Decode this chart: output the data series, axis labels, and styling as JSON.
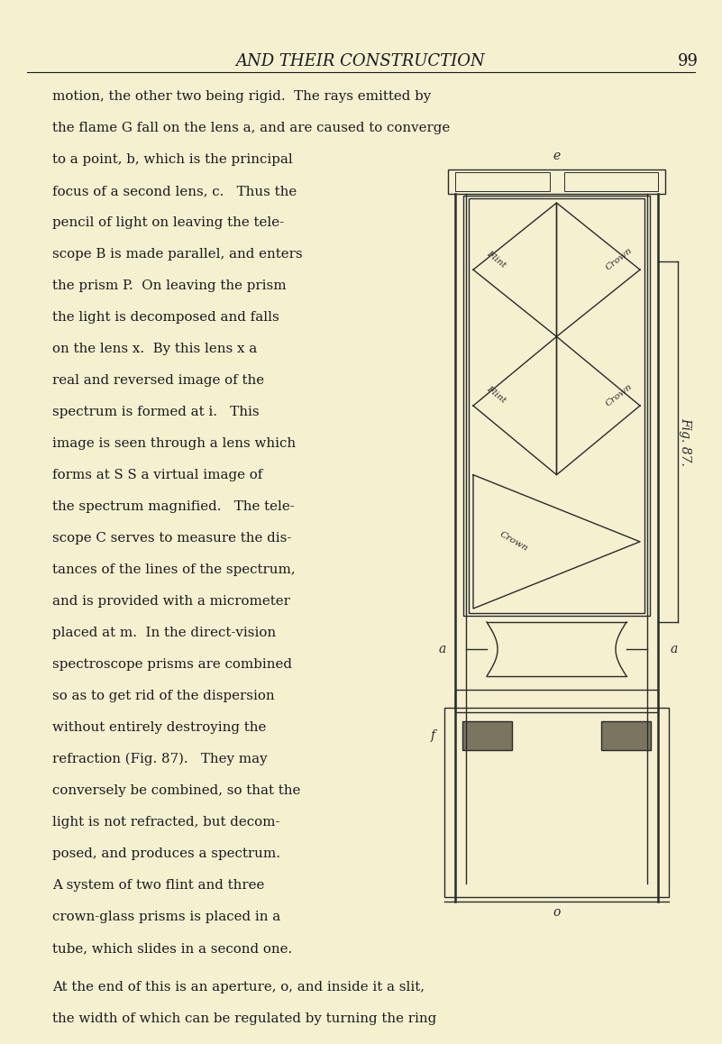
{
  "bg_color": "#f5f0d0",
  "page_number": "99",
  "header": "AND THEIR CONSTRUCTION",
  "text_color": "#1a1a1a",
  "col_line1": "motion, the other two being rigid.  The rays emitted by",
  "col_line2": "the flame G fall on the lens a, and are caused to converge",
  "left_col_lines": [
    "to a point, b, which is the principal",
    "focus of a second lens, c.   Thus the",
    "pencil of light on leaving the tele-",
    "scope B is made parallel, and enters",
    "the prism P.  On leaving the prism",
    "the light is decomposed and falls",
    "on the lens x.  By this lens x a",
    "real and reversed image of the",
    "spectrum is formed at i.   This",
    "image is seen through a lens which",
    "forms at S S a virtual image of",
    "the spectrum magnified.   The tele-",
    "scope C serves to measure the dis-",
    "tances of the lines of the spectrum,",
    "and is provided with a micrometer",
    "placed at m.  In the direct-vision",
    "spectroscope prisms are combined",
    "so as to get rid of the dispersion",
    "without entirely destroying the",
    "refraction (Fig. 87).   They may",
    "conversely be combined, so that the",
    "light is not refracted, but decom-",
    "posed, and produces a spectrum.",
    "A system of two flint and three",
    "crown-glass prisms is placed in a",
    "tube, which slides in a second one."
  ],
  "footer_lines": [
    "At the end of this is an aperture, o, and inside it a slit,",
    "the width of which can be regulated by turning the ring"
  ],
  "fig_label": "Fig. 87."
}
